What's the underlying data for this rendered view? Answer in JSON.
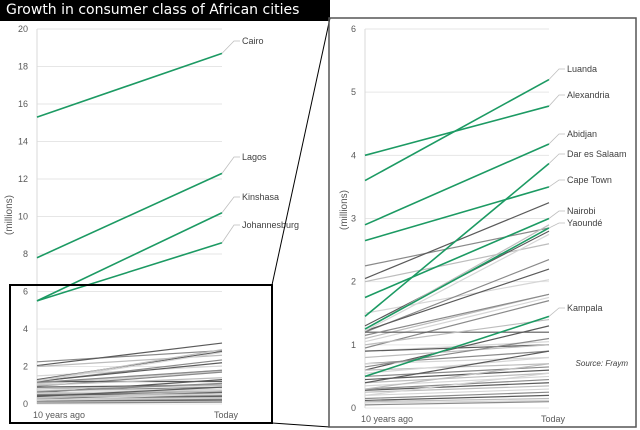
{
  "title": "Growth in consumer class of African cities",
  "source": "Source: Fraym",
  "colors": {
    "highlight": "#1c9a63",
    "other": [
      "#8a8a8a",
      "#5a5a5a",
      "#bdbdbd",
      "#d6d6d6"
    ],
    "axis": "#d9d9d9"
  },
  "chart_data": [
    {
      "type": "line",
      "ylabel": "(millions)",
      "categories": [
        "10 years ago",
        "Today"
      ],
      "ylim": [
        0,
        20
      ],
      "yticks": [
        "0",
        "2",
        "4",
        "6",
        "8",
        "10",
        "12",
        "14",
        "16",
        "18",
        "20"
      ],
      "grid": true,
      "series": [
        {
          "name": "Cairo",
          "values": [
            15.3,
            18.7
          ],
          "highlight": true
        },
        {
          "name": "Lagos",
          "values": [
            7.8,
            12.3
          ],
          "highlight": true
        },
        {
          "name": "Kinshasa",
          "values": [
            5.5,
            10.2
          ],
          "highlight": true
        },
        {
          "name": "Johannesburg",
          "values": [
            5.5,
            8.6
          ],
          "highlight": true
        }
      ]
    },
    {
      "type": "line",
      "ylabel": "(millions)",
      "categories": [
        "10 years ago",
        "Today"
      ],
      "ylim": [
        0,
        6
      ],
      "yticks": [
        "0",
        "1",
        "2",
        "3",
        "4",
        "5",
        "6"
      ],
      "grid": true,
      "series": [
        {
          "name": "Luanda",
          "values": [
            3.6,
            5.2
          ],
          "highlight": true
        },
        {
          "name": "Alexandria",
          "values": [
            4.0,
            4.78
          ],
          "highlight": true
        },
        {
          "name": "Abidjan",
          "values": [
            2.9,
            4.18
          ],
          "highlight": true
        },
        {
          "name": "Dar es Salaam",
          "values": [
            1.45,
            3.87
          ],
          "highlight": true
        },
        {
          "name": "Cape Town",
          "values": [
            2.65,
            3.5
          ],
          "highlight": true
        },
        {
          "name": "Nairobi",
          "values": [
            1.75,
            3.0
          ],
          "highlight": true
        },
        {
          "name": "Yaoundé",
          "values": [
            1.25,
            2.85
          ],
          "highlight": true
        },
        {
          "name": "Kampala",
          "values": [
            0.5,
            1.45
          ],
          "highlight": true
        }
      ],
      "other_series": [
        [
          2.25,
          2.85
        ],
        [
          2.05,
          3.25
        ],
        [
          2.0,
          2.6
        ],
        [
          1.5,
          2.03
        ],
        [
          1.2,
          2.35
        ],
        [
          1.22,
          2.2
        ],
        [
          1.1,
          1.8
        ],
        [
          1.05,
          1.75
        ],
        [
          0.95,
          1.7
        ],
        [
          1.2,
          1.2
        ],
        [
          1.0,
          1.4
        ],
        [
          0.9,
          1.05
        ],
        [
          0.7,
          0.9
        ],
        [
          0.6,
          1.3
        ],
        [
          0.6,
          0.7
        ],
        [
          0.55,
          0.8
        ],
        [
          0.5,
          0.65
        ],
        [
          0.45,
          0.6
        ],
        [
          0.4,
          0.55
        ],
        [
          0.35,
          0.5
        ],
        [
          0.3,
          0.45
        ],
        [
          0.28,
          0.4
        ],
        [
          0.25,
          0.35
        ],
        [
          0.2,
          0.3
        ],
        [
          0.15,
          0.25
        ],
        [
          0.12,
          0.2
        ],
        [
          0.1,
          0.15
        ],
        [
          0.08,
          0.12
        ],
        [
          0.05,
          0.1
        ],
        [
          0.9,
          1.0
        ],
        [
          0.8,
          1.0
        ],
        [
          0.7,
          0.8
        ],
        [
          1.15,
          1.8
        ],
        [
          1.3,
          2.8
        ],
        [
          1.25,
          2.9
        ],
        [
          1.22,
          2.75
        ],
        [
          0.65,
          1.1
        ],
        [
          0.4,
          0.9
        ],
        [
          0.3,
          0.7
        ],
        [
          0.2,
          0.55
        ]
      ]
    }
  ]
}
